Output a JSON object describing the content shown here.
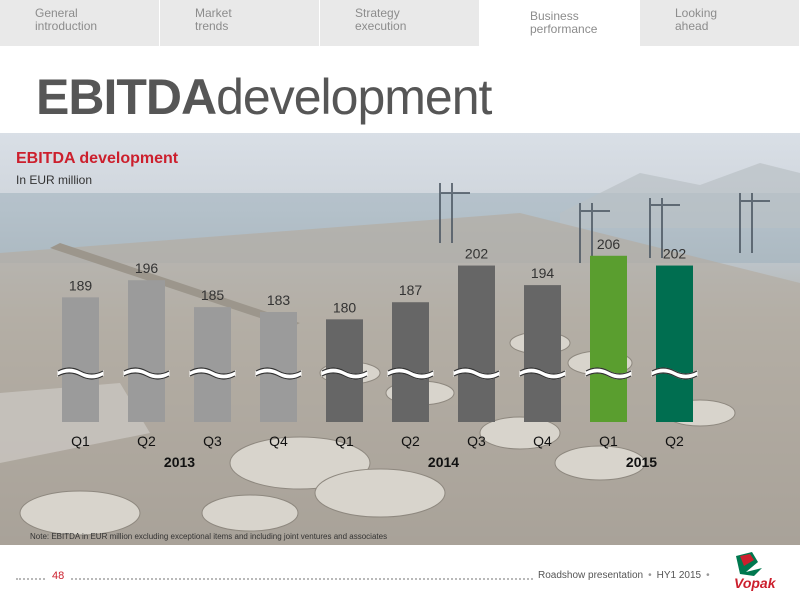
{
  "nav": {
    "tabs": [
      {
        "label": "General\nintroduction",
        "active": false
      },
      {
        "label": "Market\ntrends",
        "active": false
      },
      {
        "label": "Strategy\nexecution",
        "active": false
      },
      {
        "label": "Business\nperformance",
        "active": true
      },
      {
        "label": "Looking\nahead",
        "active": false
      }
    ]
  },
  "page": {
    "title_bold": "EBITDA",
    "title_rest": "development"
  },
  "chart_data": {
    "type": "bar",
    "title": "EBITDA development",
    "subtitle": "In EUR million",
    "categories": [
      "Q1",
      "Q2",
      "Q3",
      "Q4",
      "Q1",
      "Q2",
      "Q3",
      "Q4",
      "Q1",
      "Q2"
    ],
    "years": [
      {
        "label": "2013",
        "from": 0,
        "to": 3
      },
      {
        "label": "2014",
        "from": 4,
        "to": 7
      },
      {
        "label": "2015",
        "from": 8,
        "to": 9
      }
    ],
    "values": [
      189,
      196,
      185,
      183,
      180,
      187,
      202,
      194,
      206,
      202
    ],
    "bar_colors": [
      "#9b9b9b",
      "#9b9b9b",
      "#9b9b9b",
      "#9b9b9b",
      "#666666",
      "#666666",
      "#666666",
      "#666666",
      "#5a9e2f",
      "#006e50"
    ],
    "axis_break": true,
    "ylim": [
      165,
      210
    ],
    "grid": false
  },
  "note": "Note: EBITDA in EUR million excluding exceptional items and including joint ventures and associates",
  "footer": {
    "page_number": "48",
    "presentation": "Roadshow presentation",
    "period": "HY1 2015",
    "brand": "Vopak",
    "brand_color": "#cc1f2d"
  }
}
